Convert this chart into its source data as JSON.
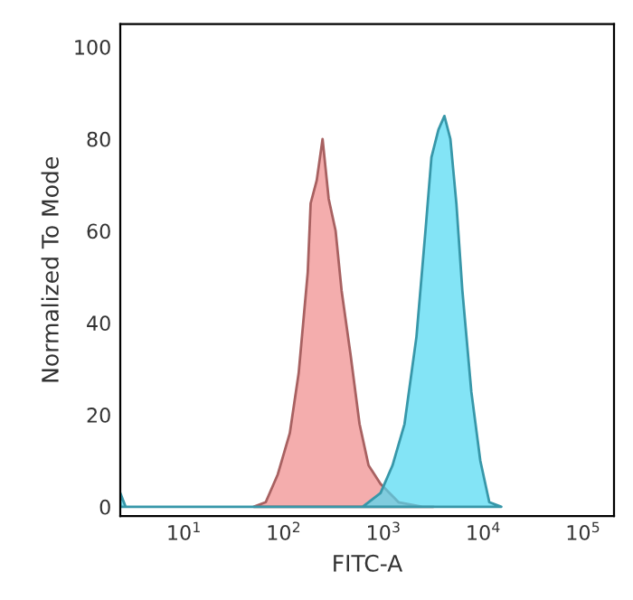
{
  "chart_data": {
    "type": "area",
    "xlabel": "FITC-A",
    "ylabel": "Normalized To Mode",
    "log": "x",
    "xlim": [
      2.3,
      204000
    ],
    "xticks": [
      {
        "value": 10,
        "label": "10$^{1}$"
      },
      {
        "value": 100,
        "label": "10$^{2}$"
      },
      {
        "value": 1000,
        "label": "10$^{3}$"
      },
      {
        "value": 10000,
        "label": "10$^{4}$"
      },
      {
        "value": 100000,
        "label": "10$^{5}$"
      }
    ],
    "ylim": [
      -2,
      105
    ],
    "yticks": [
      0,
      20,
      40,
      60,
      80,
      100
    ],
    "grid": false,
    "series": [
      {
        "color": "#f08a8a",
        "x": [
          50,
          66,
          87,
          115,
          141,
          174,
          186,
          214,
          245,
          282,
          331,
          380,
          468,
          575,
          708,
          933,
          1413,
          2455,
          3162
        ],
        "values": [
          0,
          1,
          7,
          16,
          29,
          51,
          66,
          71,
          80,
          67,
          60,
          47,
          33,
          18,
          9,
          5,
          1,
          0,
          0
        ]
      },
      {
        "color": "#4fd8f2",
        "x": [
          2.3,
          2.6,
          468,
          617,
          933,
          1230,
          1622,
          2138,
          2630,
          3020,
          3548,
          4074,
          4677,
          5370,
          6166,
          7586,
          9333,
          11482,
          15136
        ],
        "values": [
          3,
          0,
          0,
          0,
          3,
          9,
          18,
          37,
          60,
          76,
          82,
          85,
          80,
          66,
          47,
          25,
          10,
          1,
          0
        ]
      }
    ]
  }
}
